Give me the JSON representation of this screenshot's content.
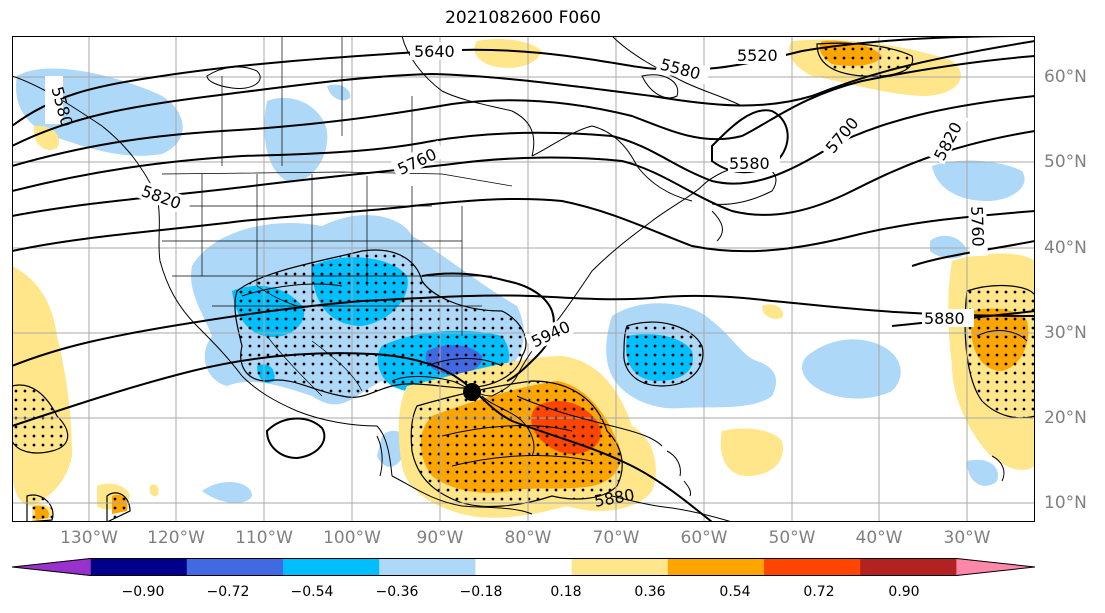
{
  "title": "2021082600 F060",
  "map": {
    "region": "North America / North Atlantic",
    "center_marker": "black-dot",
    "contour_labels": [
      "5640",
      "5520",
      "5580",
      "5580",
      "5580",
      "5760",
      "5700",
      "5820",
      "5820",
      "5760",
      "5880",
      "5940",
      "5880"
    ],
    "longitude_labels": [
      "130°W",
      "120°W",
      "110°W",
      "100°W",
      "90°W",
      "80°W",
      "70°W",
      "60°W",
      "50°W",
      "40°W",
      "30°W"
    ],
    "latitude_labels": [
      "60°N",
      "50°N",
      "40°N",
      "30°N",
      "20°N",
      "10°N"
    ]
  },
  "colorbar": {
    "ticks": [
      "−0.90",
      "−0.72",
      "−0.54",
      "−0.36",
      "−0.18",
      "0.18",
      "0.36",
      "0.54",
      "0.72",
      "0.90"
    ],
    "colors": [
      "#9932cc",
      "#00008b",
      "#4169e1",
      "#00bfff",
      "#add8f7",
      "#ffffff",
      "#ffe68a",
      "#ffa500",
      "#ff4500",
      "#b22222",
      "#ff88aa"
    ]
  }
}
